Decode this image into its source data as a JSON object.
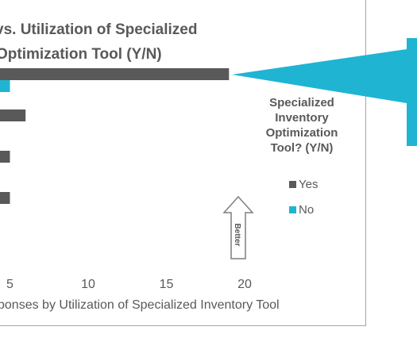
{
  "chart_data": {
    "type": "bar",
    "orientation": "horizontal",
    "title_lines": [
      "vs. Utilization of Specialized",
      "Optimization  Tool (Y/N)"
    ],
    "xlabel": "ponses by Utilization  of Specialized Inventory Tool",
    "xlim": [
      0,
      20
    ],
    "xticks": [
      "5",
      "10",
      "15",
      "20"
    ],
    "xtick_values": [
      5,
      10,
      15,
      20
    ],
    "series": [
      {
        "name": "Yes",
        "color": "#595959",
        "values": [
          19,
          6,
          5,
          5
        ]
      },
      {
        "name": "No",
        "color": "#1fb4d2",
        "values": [
          5,
          null,
          null,
          null
        ]
      }
    ],
    "legend": {
      "title_lines": [
        "Specialized",
        "Inventory",
        "Optimization",
        "Tool? (Y/N)"
      ],
      "position": "right"
    },
    "annotation": {
      "arrow_label": "Better",
      "arrow_direction": "up"
    },
    "grid": false
  },
  "colors": {
    "callout": "#1fb4d2",
    "axis": "#bfbfbf",
    "frame": "#a6a6a6"
  }
}
